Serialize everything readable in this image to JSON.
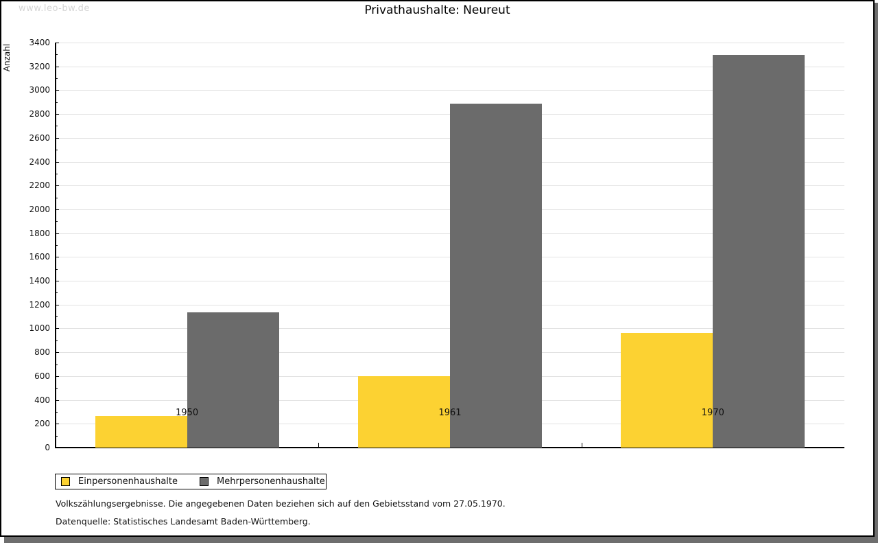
{
  "watermark": "www.leo-bw.de",
  "header": {
    "title": "Privathaushalte: Neureut"
  },
  "footnotes": {
    "line1": "Volkszählungsergebnisse. Die angegebenen Daten beziehen sich auf den Gebietsstand vom 27.05.1970.",
    "line2": "Datenquelle: Statistisches Landesamt Baden-Württemberg."
  },
  "colors": {
    "series1": "#fcd232",
    "series2": "#6b6b6b",
    "gridline": "#e2e2e2",
    "axis": "#000000",
    "watermark": "#d4d4d4",
    "frame_shadow": "#6e6e6e"
  },
  "chart_data": {
    "type": "bar",
    "title": "Privathaushalte: Neureut",
    "xlabel": "",
    "ylabel": "Anzahl",
    "categories": [
      "1950",
      "1961",
      "1970"
    ],
    "series": [
      {
        "name": "Einpersonenhaushalte",
        "color": "#fcd232",
        "values": [
          265,
          600,
          960
        ]
      },
      {
        "name": "Mehrpersonenhaushalte",
        "color": "#6b6b6b",
        "values": [
          1135,
          2890,
          3295
        ]
      }
    ],
    "ylim": [
      0,
      3400
    ],
    "ytick_step": 200,
    "minor_tick_step": 100,
    "grid": "horizontal-major",
    "legend_position": "bottom-left"
  }
}
